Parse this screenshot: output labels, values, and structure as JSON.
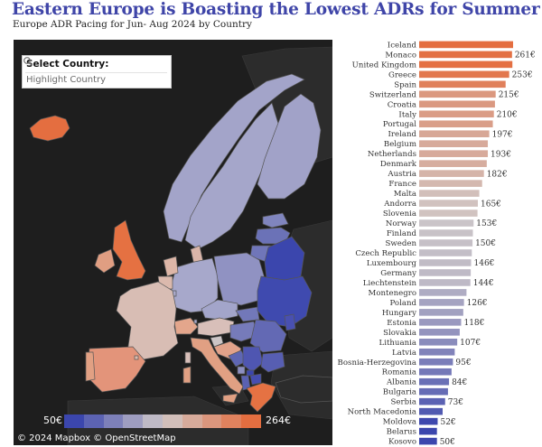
{
  "title": "Eastern Europe is Boasting the Lowest ADRs for Summer",
  "subtitle": "Europe ADR Pacing for Jun- Aug 2024 by Country",
  "filter": {
    "label": "Select Country:",
    "placeholder": "Highlight Country",
    "icon": "search-icon"
  },
  "map": {
    "legend_min": "50€",
    "legend_max": "264€",
    "attribution": "© 2024 Mapbox  © OpenStreetMap",
    "colors": {
      "low": "#3b46ad",
      "mid": "#d0c9c9",
      "high": "#e46e40",
      "background": "#1e1e1e",
      "land": "#2c2c2c"
    }
  },
  "chart_data": {
    "type": "bar",
    "orientation": "horizontal",
    "title": "Europe ADR Pacing for Jun- Aug 2024 by Country",
    "unit": "€",
    "categories": [
      "Iceland",
      "Monaco",
      "United Kingdom",
      "Greece",
      "Spain",
      "Switzerland",
      "Croatia",
      "Italy",
      "Portugal",
      "Ireland",
      "Belgium",
      "Netherlands",
      "Denmark",
      "Austria",
      "France",
      "Malta",
      "Andorra",
      "Slovenia",
      "Norway",
      "Finland",
      "Sweden",
      "Czech Republic",
      "Luxembourg",
      "Germany",
      "Liechtenstein",
      "Montenegro",
      "Poland",
      "Hungary",
      "Estonia",
      "Slovakia",
      "Lithuania",
      "Latvia",
      "Bosnia-Herzegovina",
      "Romania",
      "Albania",
      "Bulgaria",
      "Serbia",
      "North Macedonia",
      "Moldova",
      "Belarus",
      "Kosovo"
    ],
    "values": [
      264,
      261,
      262,
      253,
      243,
      215,
      213,
      210,
      207,
      197,
      193,
      193,
      190,
      182,
      177,
      169,
      165,
      164,
      153,
      151,
      150,
      148,
      146,
      145,
      144,
      133,
      126,
      124,
      118,
      114,
      107,
      100,
      95,
      91,
      84,
      81,
      73,
      66,
      52,
      50,
      50
    ],
    "data_labels": [
      "",
      "261€",
      "",
      "253€",
      "",
      "215€",
      "",
      "210€",
      "",
      "197€",
      "",
      "193€",
      "",
      "182€",
      "",
      "",
      "165€",
      "",
      "153€",
      "",
      "150€",
      "",
      "146€",
      "",
      "144€",
      "",
      "126€",
      "",
      "118€",
      "",
      "107€",
      "",
      "95€",
      "",
      "84€",
      "",
      "73€",
      "",
      "52€",
      "",
      "50€"
    ],
    "xlim": [
      0,
      264
    ],
    "grid": false,
    "color_scale": {
      "min": 50,
      "mid": 157,
      "max": 264,
      "low_color": "#3b46ad",
      "mid_color": "#d0c9c9",
      "high_color": "#e46e40"
    }
  }
}
